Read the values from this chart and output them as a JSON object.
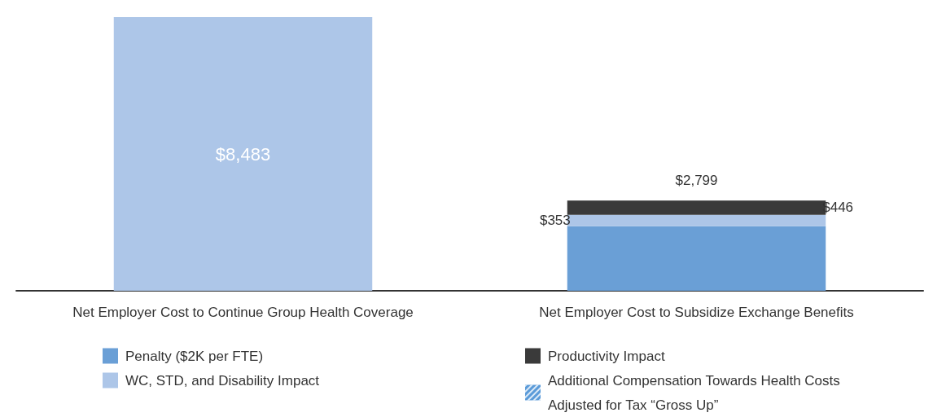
{
  "chart_data": {
    "type": "bar",
    "stacked": true,
    "categories": [
      "Net Employer Cost to Continue Group Health Coverage",
      "Net Employer Cost to Subsidize Exchange Benefits"
    ],
    "series": [
      {
        "name": "Penalty ($2K per FTE)",
        "color": "#6a9fd6",
        "values": [
          null,
          2000
        ],
        "value_labels": [
          null,
          null
        ]
      },
      {
        "name": "WC, STD, and Disability Impact",
        "color": "#adc6e8",
        "values": [
          8483,
          353
        ],
        "value_labels": [
          "$8,483",
          "$353"
        ]
      },
      {
        "name": "Productivity Impact",
        "color": "#3a3a3a",
        "values": [
          null,
          446
        ],
        "value_labels": [
          null,
          "$446"
        ]
      },
      {
        "name": "Additional Compensation Towards Health Costs Adjusted for Tax “Gross Up”",
        "color": "#5b9bd9",
        "values": [
          null,
          null
        ],
        "value_labels": [
          null,
          null
        ]
      }
    ],
    "totals": [
      null,
      "$2,799"
    ],
    "legend": "bottom"
  }
}
